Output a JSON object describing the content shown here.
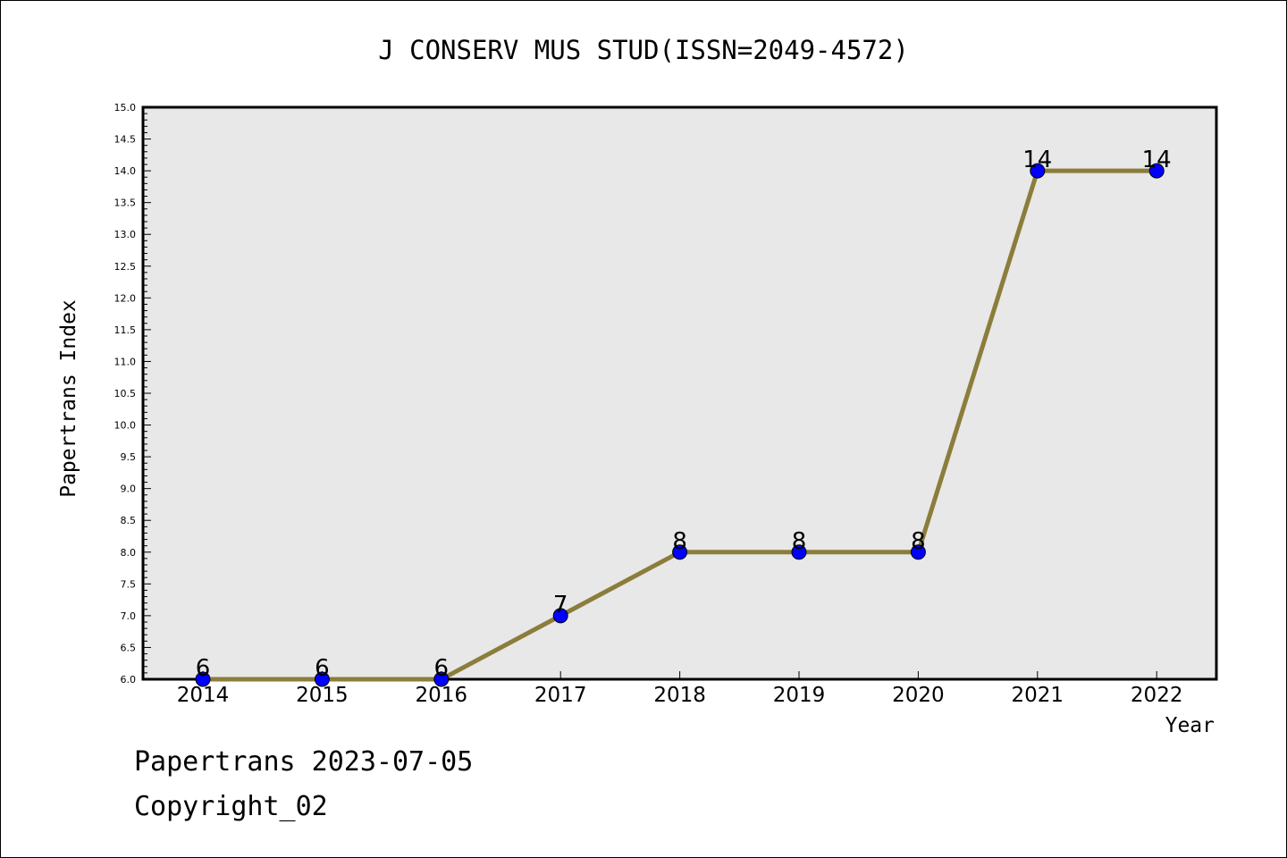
{
  "chart_data": {
    "type": "line",
    "title": "J CONSERV MUS STUD(ISSN=2049-4572)",
    "xlabel": "Year",
    "ylabel": "Papertrans Index",
    "categories": [
      "2014",
      "2015",
      "2016",
      "2017",
      "2018",
      "2019",
      "2020",
      "2021",
      "2022"
    ],
    "series": [
      {
        "values": [
          6,
          6,
          6,
          7,
          8,
          8,
          8,
          14,
          14
        ]
      }
    ],
    "data_labels": [
      "6",
      "6",
      "6",
      "7",
      "8",
      "8",
      "8",
      "14",
      "14"
    ],
    "ylim": [
      6.0,
      15.0
    ],
    "yticks": [
      "6.0",
      "6.5",
      "7.0",
      "7.5",
      "8.0",
      "8.5",
      "9.0",
      "9.5",
      "10.0",
      "10.5",
      "11.0",
      "11.5",
      "12.0",
      "12.5",
      "13.0",
      "13.5",
      "14.0",
      "14.5",
      "15.0"
    ],
    "grid": false,
    "legend": "none",
    "colors": {
      "plot_background": "#e8e8e8",
      "line": "#8b7d3a",
      "marker": "#0000ff"
    }
  },
  "footer": {
    "line1": "Papertrans 2023-07-05",
    "line2": "Copyright_02"
  }
}
